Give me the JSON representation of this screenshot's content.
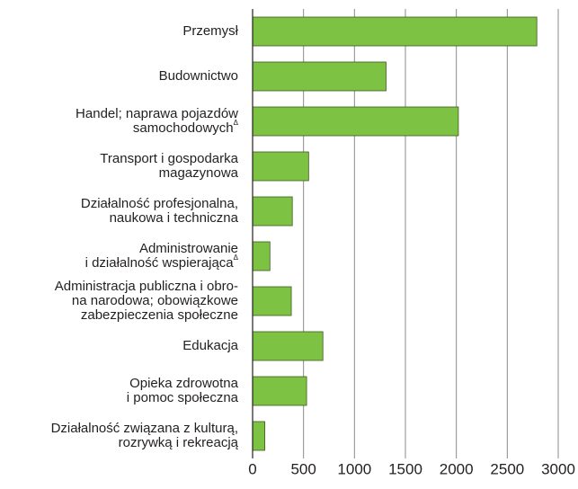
{
  "chart_data": {
    "type": "barh",
    "categories": [
      [
        "Przemysł"
      ],
      [
        "Budownictwo"
      ],
      [
        "Handel; naprawa pojazdów",
        "samochodowychΔ"
      ],
      [
        "Transport i gospodarka",
        "magazynowa"
      ],
      [
        "Działalność profesjonalna,",
        "naukowa i techniczna"
      ],
      [
        "Administrowanie",
        "i działalność wspierającaΔ"
      ],
      [
        "Administracja publiczna i obro-",
        "na narodowa; obowiązkowe",
        "zabezpieczenia społeczne"
      ],
      [
        "Edukacja"
      ],
      [
        "Opieka zdrowotna",
        "i pomoc społeczna"
      ],
      [
        "Działalność związana z kulturą,",
        "rozrywką i rekreacją"
      ]
    ],
    "values": [
      2790,
      1310,
      2020,
      550,
      390,
      170,
      380,
      690,
      530,
      120
    ],
    "color": "#7dc243",
    "xlim": [
      0,
      3000
    ],
    "xticks": [
      0,
      500,
      1000,
      1500,
      2000,
      2500,
      3000
    ],
    "grid": true
  }
}
